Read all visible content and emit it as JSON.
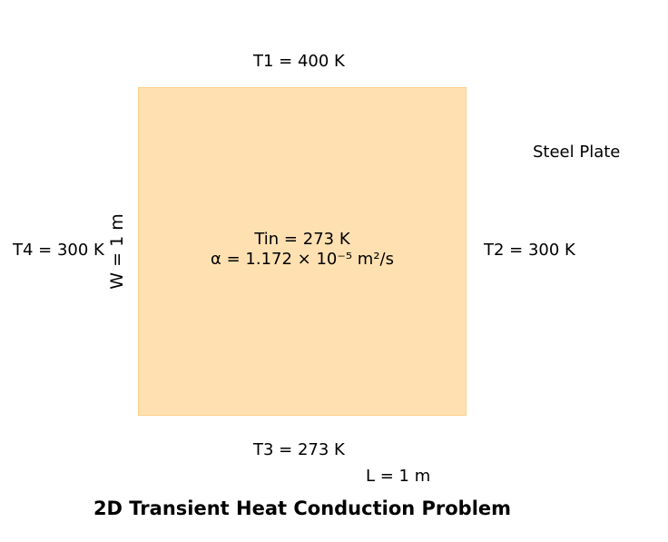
{
  "title": "2D Transient Heat Conduction Problem",
  "plate": {
    "fill_color": "#ffe1b1",
    "edge_color": "#ffd08a",
    "label": "Steel Plate",
    "initial_temperature": "Tin = 273 K",
    "diffusivity": "α = 1.172 × 10⁻⁵ m²/s"
  },
  "boundaries": {
    "top": "T1 = 400 K",
    "right": "T2 = 300 K",
    "bottom": "T3 = 273 K",
    "left": "T4 = 300 K"
  },
  "dimensions": {
    "length": "L = 1 m",
    "width": "W = 1 m"
  }
}
